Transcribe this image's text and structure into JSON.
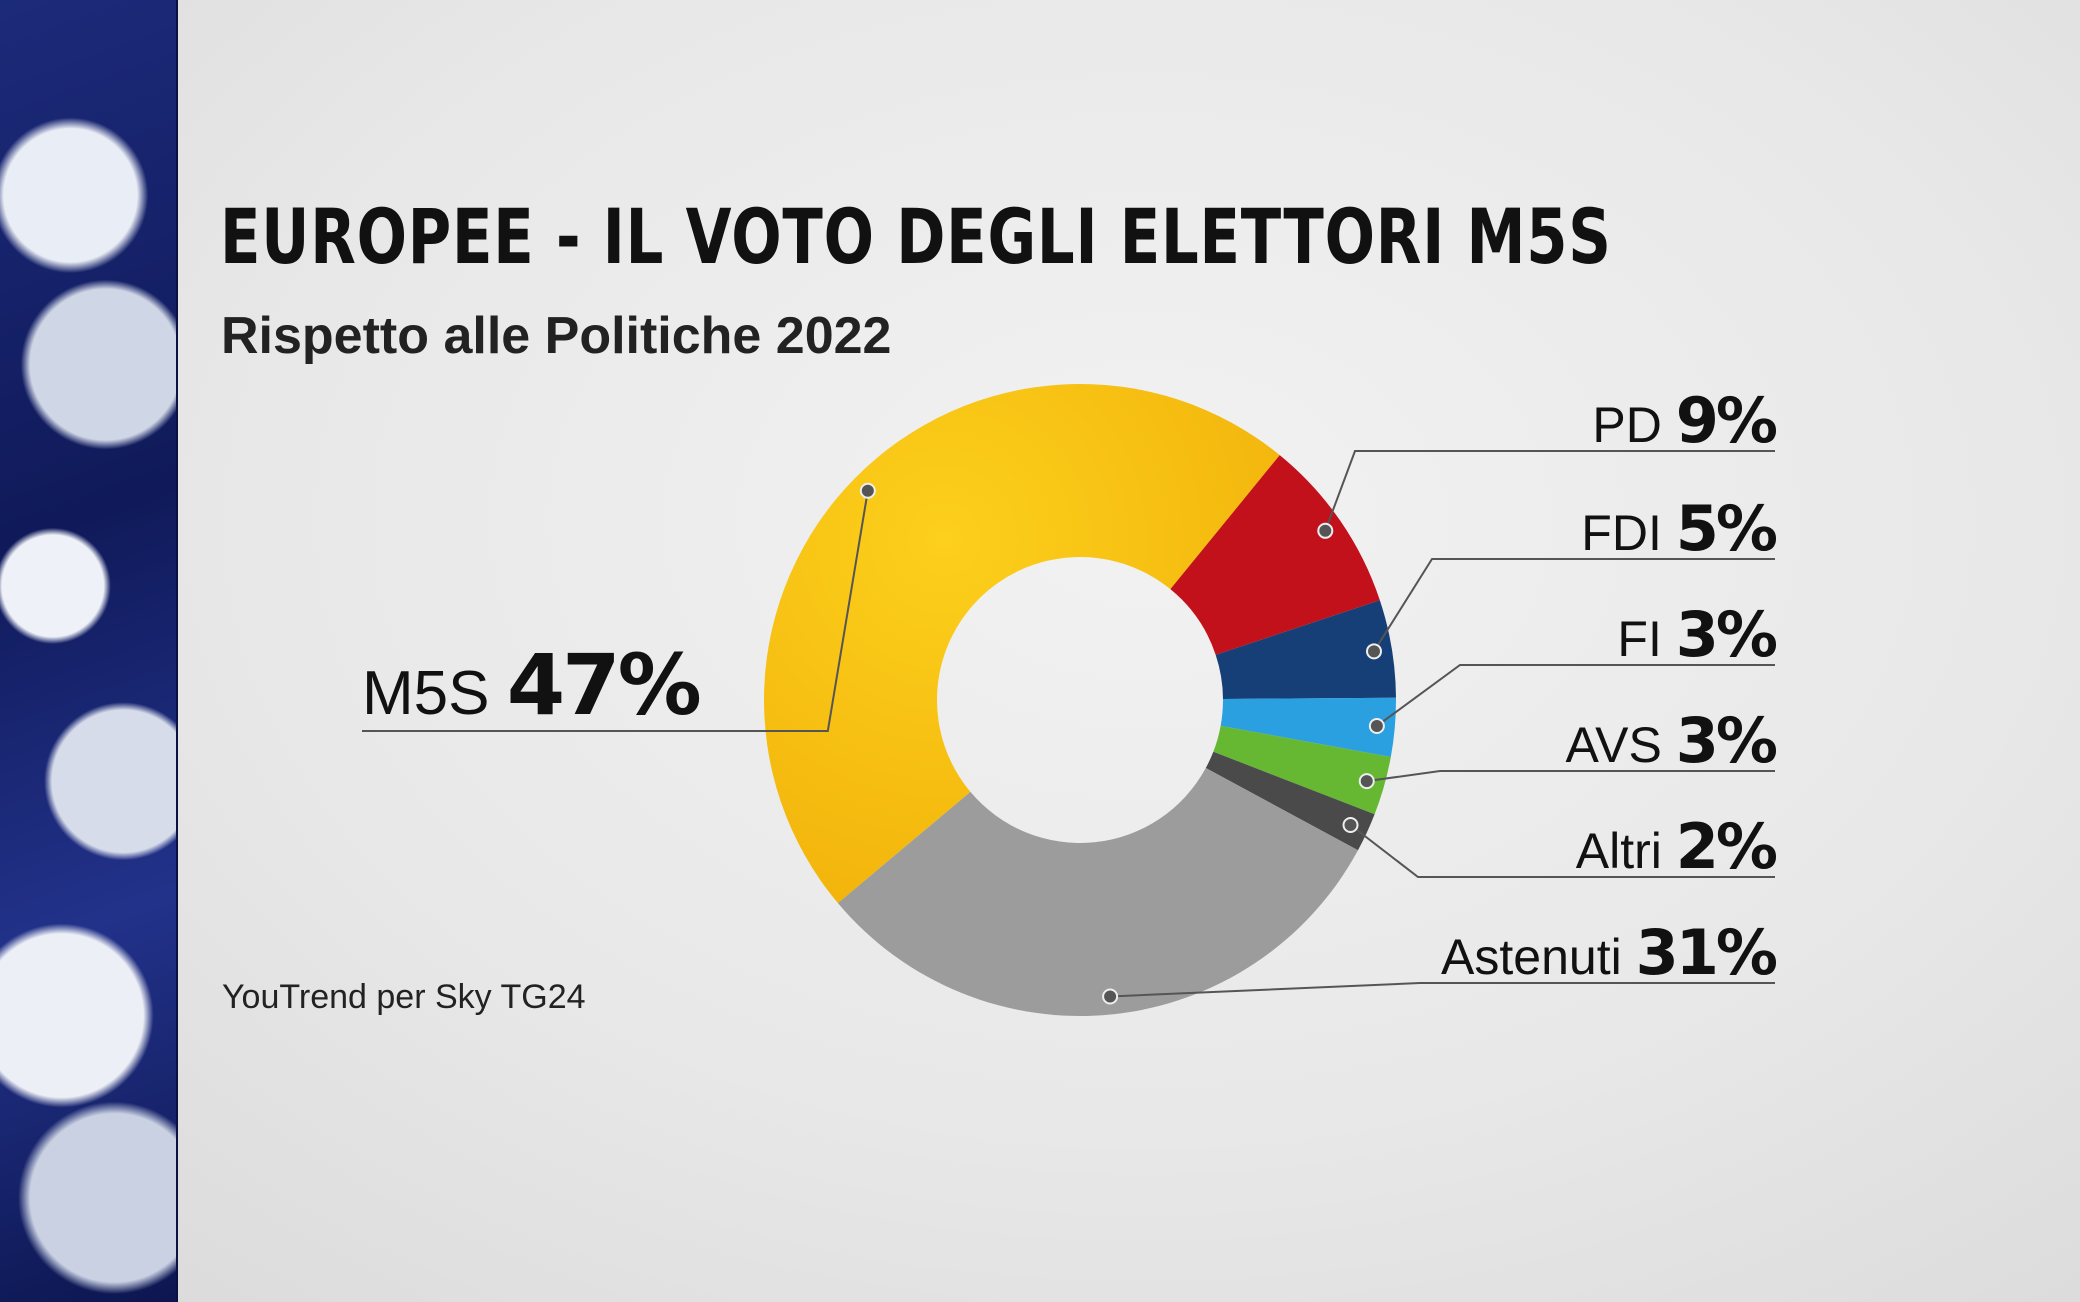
{
  "header": {
    "title": "EUROPEE - IL VOTO DEGLI ELETTORI M5S",
    "subtitle": "Rispetto alle Politiche 2022"
  },
  "footer": {
    "source": "YouTrend per Sky TG24"
  },
  "chart_data": {
    "type": "pie",
    "style": "donut",
    "title": "EUROPEE - IL VOTO DEGLI ELETTORI M5S",
    "subtitle": "Rispetto alle Politiche 2022",
    "slices": [
      {
        "name": "M5S",
        "value": 47,
        "label": "47%",
        "color": "#f7bd12"
      },
      {
        "name": "PD",
        "value": 9,
        "label": "9%",
        "color": "#c3111b"
      },
      {
        "name": "FDI",
        "value": 5,
        "label": "5%",
        "color": "#153f76"
      },
      {
        "name": "FI",
        "value": 3,
        "label": "3%",
        "color": "#2aa0e0"
      },
      {
        "name": "AVS",
        "value": 3,
        "label": "3%",
        "color": "#66b832"
      },
      {
        "name": "Altri",
        "value": 2,
        "label": "2%",
        "color": "#4a4a4a"
      },
      {
        "name": "Astenuti",
        "value": 31,
        "label": "31%",
        "color": "#9c9c9c"
      }
    ]
  }
}
